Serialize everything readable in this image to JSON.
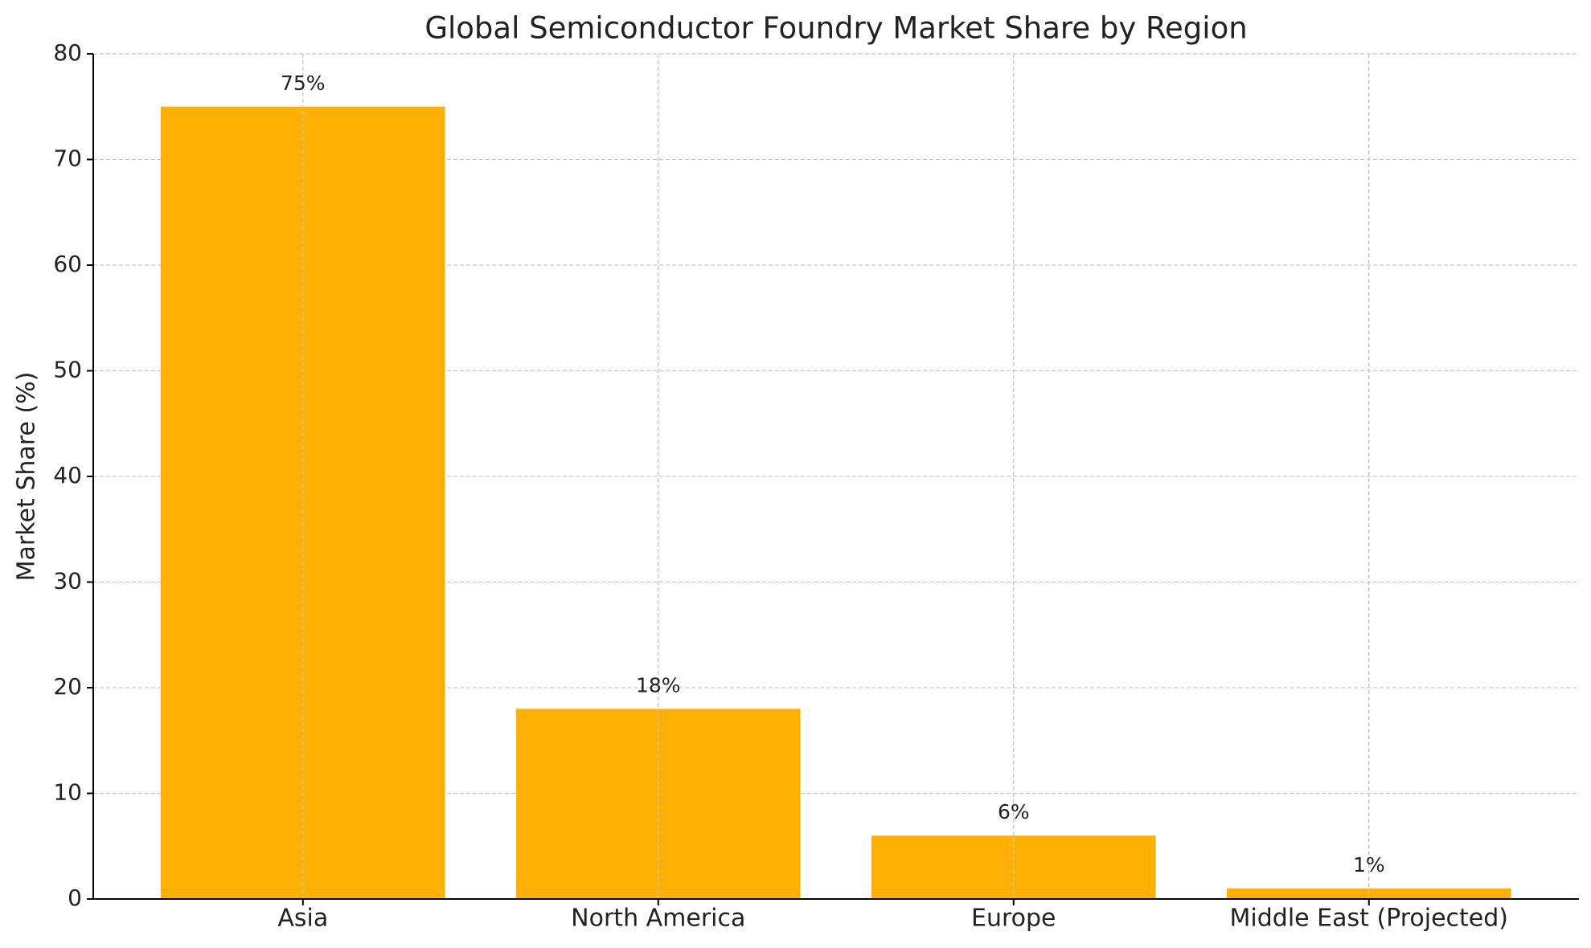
{
  "chart_data": {
    "type": "bar",
    "title": "Global Semiconductor Foundry Market Share by Region",
    "y_label": "Market Share (%)",
    "categories": [
      "Asia",
      "North America",
      "Europe",
      "Middle East (Projected)"
    ],
    "values": [
      75,
      18,
      6,
      1
    ],
    "value_labels": [
      "75%",
      "18%",
      "6%",
      "1%"
    ],
    "color": "#ffb000",
    "ylim": [
      0,
      80
    ],
    "yticks": [
      0,
      10,
      20,
      30,
      40,
      50,
      60,
      70,
      80
    ],
    "grid": true
  }
}
